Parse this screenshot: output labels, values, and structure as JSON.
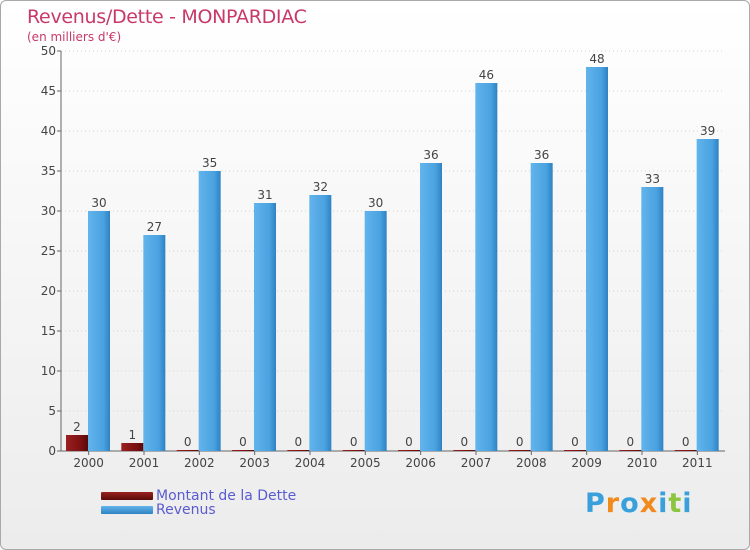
{
  "title": "Revenus/Dette - MONPARDIAC",
  "subtitle": "(en milliers d'€)",
  "legend": {
    "debt_label": "Montant de la Dette",
    "revenue_label": "Revenus"
  },
  "logo": {
    "text": "Proxiti",
    "letter_colors": [
      "#3aa0dc",
      "#f08a1c",
      "#3aa0dc",
      "#f08a1c",
      "#3aa0dc",
      "#8cc63f",
      "#3aa0dc"
    ]
  },
  "colors": {
    "debt": "#7a1010",
    "revenue": "#3f9ede",
    "title": "#c8386a",
    "legend_text": "#5b5bd0"
  },
  "chart_data": {
    "type": "bar",
    "title": "Revenus/Dette - MONPARDIAC",
    "subtitle": "(en milliers d'€)",
    "categories": [
      "2000",
      "2001",
      "2002",
      "2003",
      "2004",
      "2005",
      "2006",
      "2007",
      "2008",
      "2009",
      "2010",
      "2011"
    ],
    "series": [
      {
        "name": "Montant de la Dette",
        "values": [
          2,
          1,
          0,
          0,
          0,
          0,
          0,
          0,
          0,
          0,
          0,
          0
        ]
      },
      {
        "name": "Revenus",
        "values": [
          30,
          27,
          35,
          31,
          32,
          30,
          36,
          46,
          36,
          48,
          33,
          39
        ]
      }
    ],
    "ylim": [
      0,
      50
    ],
    "yticks": [
      0,
      5,
      10,
      15,
      20,
      25,
      30,
      35,
      40,
      45,
      50
    ],
    "grid": true,
    "legend_position": "bottom-left"
  }
}
